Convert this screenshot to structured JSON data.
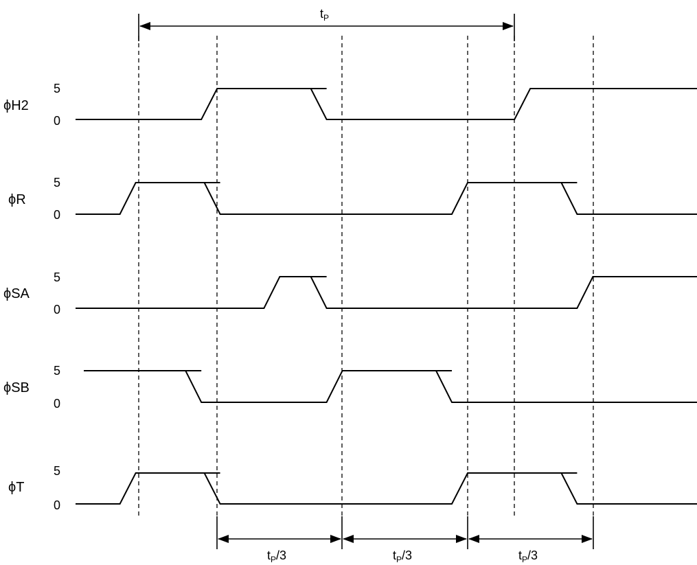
{
  "period_label": {
    "main": "t",
    "sub": "P",
    "suffix": ""
  },
  "third_labels": [
    {
      "main": "t",
      "sub": "P",
      "suffix": "/3"
    },
    {
      "main": "t",
      "sub": "P",
      "suffix": "/3"
    },
    {
      "main": "t",
      "sub": "P",
      "suffix": "/3"
    }
  ],
  "signals": [
    {
      "id": "h2",
      "name": "ϕH2",
      "high": "5",
      "low": "0",
      "path": [
        [
          0,
          "L"
        ],
        [
          1,
          "L"
        ],
        [
          1,
          "H"
        ],
        [
          3,
          "H"
        ],
        [
          3,
          "L"
        ],
        [
          6,
          "L"
        ],
        [
          6,
          "H"
        ],
        [
          9,
          "H"
        ]
      ]
    },
    {
      "id": "r",
      "name": "ϕR",
      "high": "5",
      "low": "0",
      "path": [
        [
          -0.3,
          "L"
        ],
        [
          -0.3,
          "H"
        ],
        [
          1.3,
          "H"
        ],
        [
          1.3,
          "L"
        ],
        [
          5,
          "L"
        ],
        [
          5,
          "H"
        ],
        [
          7,
          "H"
        ],
        [
          7,
          "L"
        ],
        [
          9,
          "L"
        ]
      ]
    },
    {
      "id": "sa",
      "name": "ϕSA",
      "high": "5",
      "low": "0",
      "path": [
        [
          0,
          "L"
        ],
        [
          2,
          "L"
        ],
        [
          2,
          "H"
        ],
        [
          3,
          "H"
        ],
        [
          3,
          "L"
        ],
        [
          7,
          "L"
        ],
        [
          7,
          "H"
        ],
        [
          9,
          "H"
        ]
      ]
    },
    {
      "id": "sb",
      "name": "ϕSB",
      "high": "5",
      "low": "0",
      "path": [
        [
          0,
          "H"
        ],
        [
          1,
          "H"
        ],
        [
          1,
          "L"
        ],
        [
          3,
          "L"
        ],
        [
          3,
          "H"
        ],
        [
          5,
          "H"
        ],
        [
          5,
          "L"
        ],
        [
          9,
          "L"
        ]
      ]
    },
    {
      "id": "t",
      "name": "ϕT",
      "high": "5",
      "low": "0",
      "path": [
        [
          -0.3,
          "L"
        ],
        [
          -0.3,
          "H"
        ],
        [
          1.3,
          "H"
        ],
        [
          1.3,
          "L"
        ],
        [
          5,
          "L"
        ],
        [
          5,
          "H"
        ],
        [
          7,
          "H"
        ],
        [
          7,
          "L"
        ],
        [
          9,
          "L"
        ]
      ]
    }
  ]
}
